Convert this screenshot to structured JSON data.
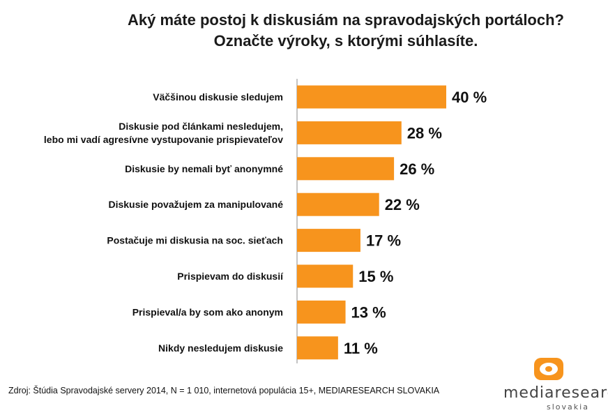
{
  "chart_data": {
    "type": "bar",
    "orientation": "horizontal",
    "title_lines": [
      "Aký máte postoj k diskusiám na spravodajských portáloch?",
      "Označte výroky, s ktorými súhlasíte."
    ],
    "categories": [
      [
        "Väčšinou diskusie sledujem"
      ],
      [
        "Diskusie pod článkami nesledujem,",
        "lebo mi vadí agresívne vystupovanie prispievateľov"
      ],
      [
        "Diskusie by nemali byť anonymné"
      ],
      [
        "Diskusie považujem za manipulované"
      ],
      [
        "Postačuje mi diskusia na soc. sieťach"
      ],
      [
        "Prispievam do diskusií"
      ],
      [
        "Prispieval/a by som ako anonym"
      ],
      [
        "Nikdy nesledujem diskusie"
      ]
    ],
    "values": [
      40,
      28,
      26,
      22,
      17,
      15,
      13,
      11
    ],
    "value_labels": [
      "40 %",
      "28 %",
      "26 %",
      "22 %",
      "17 %",
      "15 %",
      "13 %",
      "11 %"
    ],
    "unit": "%",
    "bar_color": "#F7941D",
    "axis_color": "#888888",
    "grid": false,
    "legend": "none"
  },
  "source": "Zdroj: Štúdia Spravodajské servery 2014, N = 1 010, internetová populácia 15+, MEDIARESEARCH SLOVAKIA",
  "logo": {
    "text": "mediaresearch",
    "subtext": "slovakia",
    "color": "#F7941D"
  }
}
